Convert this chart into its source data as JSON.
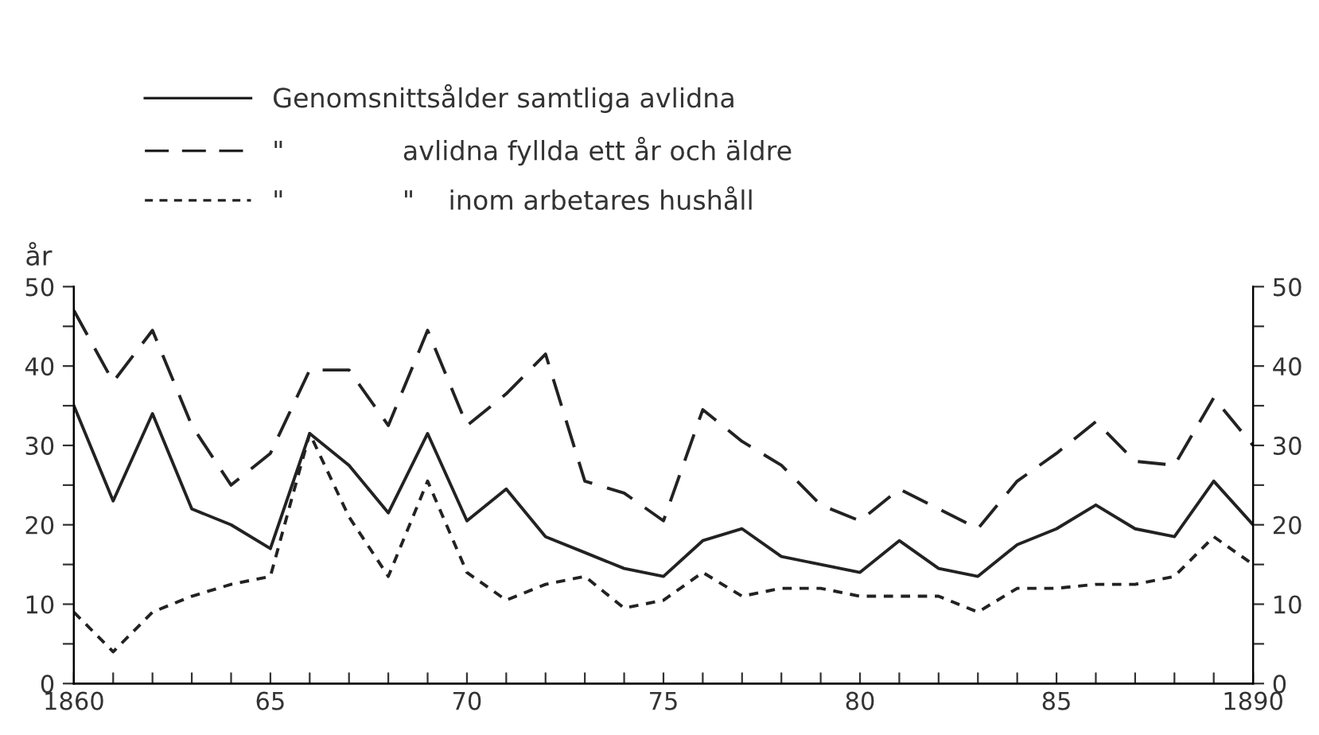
{
  "chart_data": {
    "type": "line",
    "ylabel": "år",
    "x": [
      1860,
      1861,
      1862,
      1863,
      1864,
      1865,
      1866,
      1867,
      1868,
      1869,
      1870,
      1871,
      1872,
      1873,
      1874,
      1875,
      1876,
      1877,
      1878,
      1879,
      1880,
      1881,
      1882,
      1883,
      1884,
      1885,
      1886,
      1887,
      1888,
      1889,
      1890
    ],
    "series": [
      {
        "name": "Genomsnittsålder samtliga avlidna",
        "color": "#222222",
        "line_style": "solid",
        "values": [
          35,
          23,
          34,
          22,
          20,
          17,
          31.5,
          27.5,
          21.5,
          31.5,
          20.5,
          24.5,
          18.5,
          16.5,
          14.5,
          13.5,
          18,
          19.5,
          16,
          15,
          14,
          18,
          14.5,
          13.5,
          17.5,
          19.5,
          22.5,
          19.5,
          18.5,
          25.5,
          20
        ]
      },
      {
        "name": "\"              avlidna fyllda ett år och äldre",
        "color": "#222222",
        "line_style": "dashed",
        "values": [
          47,
          38,
          44.5,
          32.5,
          25,
          29,
          39.5,
          39.5,
          32.5,
          44.5,
          32.5,
          36.5,
          41.5,
          25.5,
          24,
          20.5,
          34.5,
          30.5,
          27.5,
          22.5,
          20.5,
          24.5,
          22,
          19.5,
          25.5,
          29,
          33,
          28,
          27.5,
          36,
          30
        ]
      },
      {
        "name": "\"              \"    inom arbetares hushåll",
        "color": "#222222",
        "line_style": "dotted",
        "values": [
          9,
          4,
          9,
          11,
          12.5,
          13.5,
          31.5,
          21,
          13.5,
          25.5,
          14,
          10.5,
          12.5,
          13.5,
          9.5,
          10.5,
          14,
          11,
          12,
          12,
          11,
          11,
          11,
          9,
          12,
          12,
          12.5,
          12.5,
          13.5,
          18.5,
          15
        ]
      }
    ],
    "xlim": [
      1860,
      1890
    ],
    "xticks": [
      {
        "value": 1860,
        "label": "1860"
      },
      {
        "value": 1861,
        "label": null
      },
      {
        "value": 1862,
        "label": null
      },
      {
        "value": 1863,
        "label": null
      },
      {
        "value": 1864,
        "label": null
      },
      {
        "value": 1865,
        "label": "65"
      },
      {
        "value": 1866,
        "label": null
      },
      {
        "value": 1867,
        "label": null
      },
      {
        "value": 1868,
        "label": null
      },
      {
        "value": 1869,
        "label": null
      },
      {
        "value": 1870,
        "label": "70"
      },
      {
        "value": 1871,
        "label": null
      },
      {
        "value": 1872,
        "label": null
      },
      {
        "value": 1873,
        "label": null
      },
      {
        "value": 1874,
        "label": null
      },
      {
        "value": 1875,
        "label": "75"
      },
      {
        "value": 1876,
        "label": null
      },
      {
        "value": 1877,
        "label": null
      },
      {
        "value": 1878,
        "label": null
      },
      {
        "value": 1879,
        "label": null
      },
      {
        "value": 1880,
        "label": "80"
      },
      {
        "value": 1881,
        "label": null
      },
      {
        "value": 1882,
        "label": null
      },
      {
        "value": 1883,
        "label": null
      },
      {
        "value": 1884,
        "label": null
      },
      {
        "value": 1885,
        "label": "85"
      },
      {
        "value": 1886,
        "label": null
      },
      {
        "value": 1887,
        "label": null
      },
      {
        "value": 1888,
        "label": null
      },
      {
        "value": 1889,
        "label": null
      },
      {
        "value": 1890,
        "label": "1890"
      }
    ],
    "ylim": [
      0,
      50
    ],
    "yticks": [
      0,
      {
        "value": 5,
        "label": null
      },
      10,
      {
        "value": 15,
        "label": null
      },
      20,
      {
        "value": 25,
        "label": null
      },
      30,
      {
        "value": 35,
        "label": null
      },
      40,
      {
        "value": 45,
        "label": null
      },
      50
    ],
    "y2lim": [
      0,
      50
    ],
    "y2ticks": [
      0,
      {
        "value": 5,
        "label": null
      },
      10,
      {
        "value": 15,
        "label": null
      },
      20,
      {
        "value": 25,
        "label": null
      },
      30,
      {
        "value": 35,
        "label": null
      },
      40,
      {
        "value": 45,
        "label": null
      },
      50
    ],
    "grid": false,
    "legend": "top left",
    "marker": "none"
  }
}
